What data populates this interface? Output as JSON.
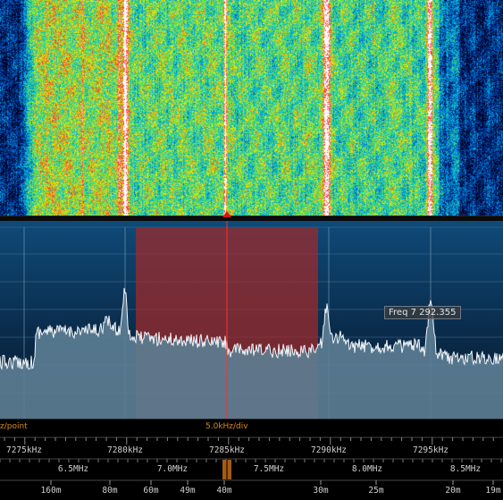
{
  "tooltip": "Freq 7 292.355",
  "status": {
    "left": "z/point",
    "center": "5.0kHz/div"
  },
  "scales": {
    "khz": [
      "7275kHz",
      "7280kHz",
      "7285kHz",
      "7290kHz",
      "7295kHz"
    ],
    "mhz": [
      "6.5MHz",
      "7.0MHz",
      "7.5MHz",
      "8.0MHz",
      "8.5MHz"
    ],
    "bands": [
      "160m",
      "80m",
      "60m",
      "49m",
      "40m",
      "30m",
      "25m",
      "20m",
      "19m"
    ]
  },
  "colors": {
    "passband": "#a12a2a",
    "spectrum_fill": "#5d7e93",
    "tuning_line": "#ff3030",
    "status_text": "#d98a1e",
    "tuning_marker": "#e01010"
  }
}
